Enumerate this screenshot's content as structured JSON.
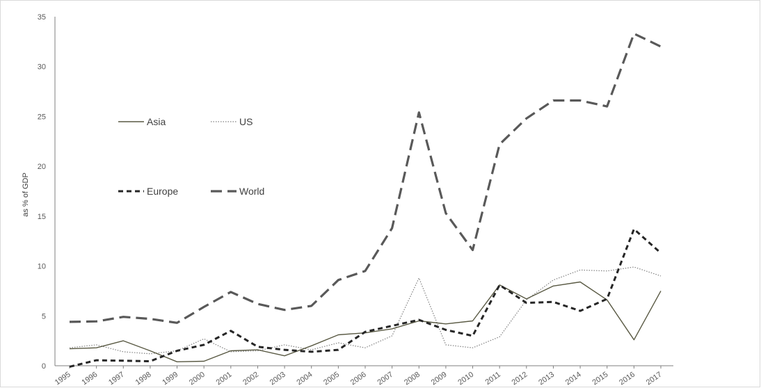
{
  "chart_data": {
    "type": "line",
    "title": "",
    "ylabel": "as % of GDP",
    "xlabel": "",
    "ylim": [
      0,
      35
    ],
    "yticks": [
      0,
      5,
      10,
      15,
      20,
      25,
      30,
      35
    ],
    "grid": false,
    "legend_position": "upper-left inside plot",
    "x": [
      "1995",
      "1996",
      "1997",
      "1998",
      "1999",
      "2000",
      "2001",
      "2002",
      "2003",
      "2004",
      "2005",
      "2006",
      "2007",
      "2008",
      "2009",
      "2010",
      "2011",
      "2012",
      "2013",
      "2014",
      "2015",
      "2016",
      "2017"
    ],
    "series": [
      {
        "name": "Asia",
        "style": "solid-thin",
        "color": "#595943",
        "values": [
          1.7,
          1.8,
          2.5,
          1.5,
          0.4,
          0.45,
          1.5,
          1.6,
          1.0,
          2.0,
          3.1,
          3.3,
          3.7,
          4.5,
          4.2,
          4.5,
          8.1,
          6.7,
          8.0,
          8.4,
          6.6,
          2.6,
          7.5
        ]
      },
      {
        "name": "US",
        "style": "dotted",
        "color": "#7f7f7f",
        "values": [
          1.8,
          2.1,
          1.4,
          1.2,
          1.5,
          2.7,
          1.4,
          1.5,
          2.1,
          1.6,
          2.3,
          1.8,
          3.0,
          8.8,
          2.1,
          1.8,
          2.9,
          6.6,
          8.6,
          9.6,
          9.5,
          9.9,
          9.0
        ]
      },
      {
        "name": "Europe",
        "style": "dashed-short",
        "color": "#262626",
        "values": [
          -0.1,
          0.55,
          0.5,
          0.45,
          1.5,
          2.1,
          3.5,
          1.9,
          1.6,
          1.4,
          1.6,
          3.4,
          4.0,
          4.6,
          3.6,
          3.0,
          8.1,
          6.3,
          6.4,
          5.5,
          6.7,
          13.7,
          11.3
        ]
      },
      {
        "name": "World",
        "style": "dashed-long",
        "color": "#595959",
        "values": [
          4.4,
          4.45,
          4.9,
          4.7,
          4.3,
          5.9,
          7.4,
          6.2,
          5.6,
          6.0,
          8.6,
          9.5,
          13.8,
          25.4,
          15.3,
          11.6,
          22.2,
          24.8,
          26.6,
          26.6,
          26.0,
          33.3,
          32.0
        ]
      }
    ]
  }
}
